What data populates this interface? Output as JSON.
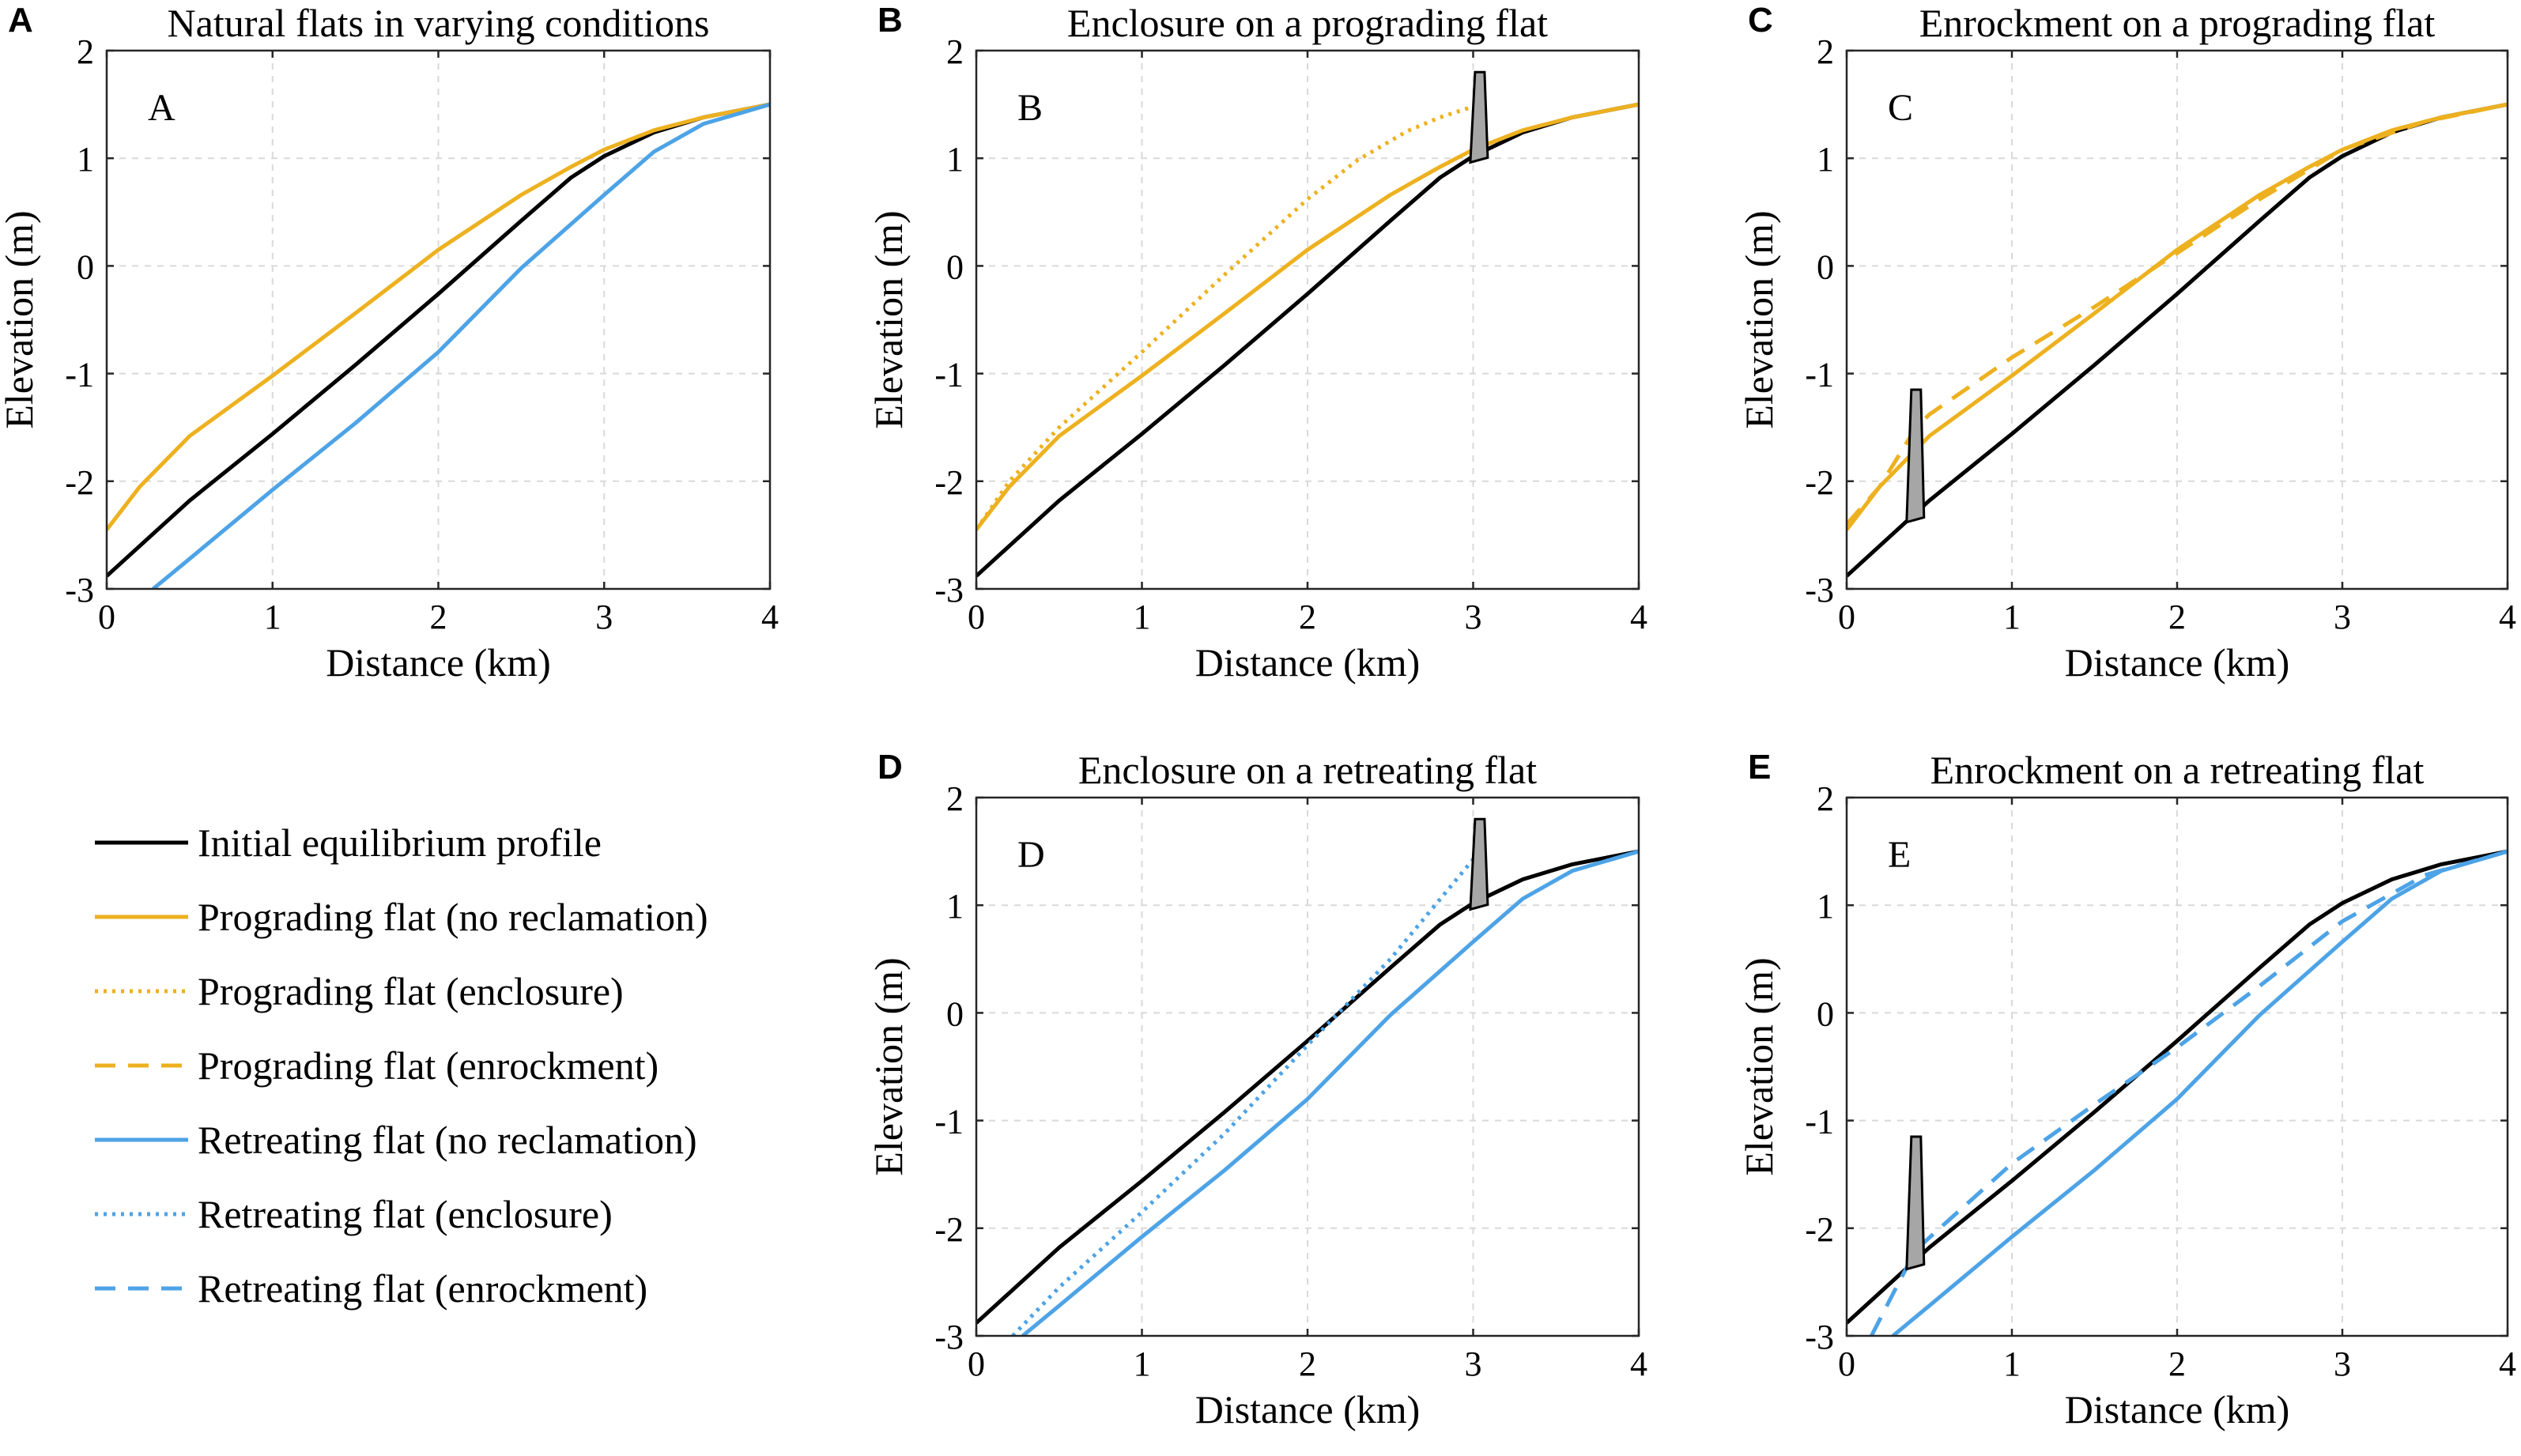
{
  "figure": {
    "colors": {
      "initial": "#000000",
      "prograding": "#EDB120",
      "retreating": "#4DA3E6"
    },
    "legend": {
      "items": [
        {
          "key": "initial",
          "label": "Initial equilibrium profile",
          "color": "#000000",
          "style": "solid"
        },
        {
          "key": "prog",
          "label": "Prograding flat (no reclamation)",
          "color": "#EDB120",
          "style": "solid"
        },
        {
          "key": "prog_encl",
          "label": "Prograding flat (enclosure)",
          "color": "#EDB120",
          "style": "dotted"
        },
        {
          "key": "prog_enr",
          "label": "Prograding flat (enrockment)",
          "color": "#EDB120",
          "style": "dashed"
        },
        {
          "key": "retr",
          "label": "Retreating flat (no reclamation)",
          "color": "#4DA3E6",
          "style": "solid"
        },
        {
          "key": "retr_encl",
          "label": "Retreating flat (enclosure)",
          "color": "#4DA3E6",
          "style": "dotted"
        },
        {
          "key": "retr_enr",
          "label": "Retreating flat (enrockment)",
          "color": "#4DA3E6",
          "style": "dashed"
        }
      ]
    }
  },
  "chart_data": [
    {
      "id": "A",
      "type": "line",
      "panel_letter": "A",
      "inner_label": "A",
      "title": "Natural flats in varying conditions",
      "xlabel": "Distance (km)",
      "ylabel": "Elevation (m)",
      "xlim": [
        0,
        4
      ],
      "ylim": [
        -3,
        2
      ],
      "xticks": [
        "0",
        "1",
        "2",
        "3",
        "4"
      ],
      "yticks": [
        "-3",
        "-2",
        "-1",
        "0",
        "1",
        "2"
      ],
      "structure": null,
      "series": [
        {
          "name": "Initial equilibrium profile",
          "color": "#000000",
          "style": "solid",
          "x": [
            0,
            0.5,
            1,
            1.5,
            2,
            2.5,
            2.8,
            3,
            3.3,
            3.6,
            4
          ],
          "y": [
            -2.88,
            -2.18,
            -1.56,
            -0.92,
            -0.26,
            0.42,
            0.82,
            1.02,
            1.24,
            1.38,
            1.5
          ]
        },
        {
          "name": "Prograding flat (no reclamation)",
          "color": "#EDB120",
          "style": "solid",
          "x": [
            0,
            0.2,
            0.5,
            1,
            1.5,
            2,
            2.5,
            2.8,
            3,
            3.3,
            3.6,
            4
          ],
          "y": [
            -2.45,
            -2.05,
            -1.58,
            -1.02,
            -0.44,
            0.15,
            0.66,
            0.92,
            1.08,
            1.26,
            1.38,
            1.5
          ]
        },
        {
          "name": "Retreating flat (no reclamation)",
          "color": "#4DA3E6",
          "style": "solid",
          "x": [
            0.28,
            0.5,
            1,
            1.5,
            2,
            2.5,
            3,
            3.3,
            3.6,
            4
          ],
          "y": [
            -3.0,
            -2.72,
            -2.08,
            -1.46,
            -0.8,
            -0.02,
            0.66,
            1.06,
            1.32,
            1.5
          ]
        }
      ]
    },
    {
      "id": "B",
      "type": "line",
      "panel_letter": "B",
      "inner_label": "B",
      "title": "Enclosure on a prograding flat",
      "xlabel": "Distance (km)",
      "ylabel": "Elevation (m)",
      "xlim": [
        0,
        4
      ],
      "ylim": [
        -3,
        2
      ],
      "xticks": [
        "0",
        "1",
        "2",
        "3",
        "4"
      ],
      "yticks": [
        "-3",
        "-2",
        "-1",
        "0",
        "1",
        "2"
      ],
      "structure": {
        "x": 3.04,
        "top": 1.8
      },
      "series": [
        {
          "name": "Initial equilibrium profile",
          "color": "#000000",
          "style": "solid",
          "x": [
            0,
            0.5,
            1,
            1.5,
            2,
            2.5,
            2.8,
            3,
            3.3,
            3.6,
            4
          ],
          "y": [
            -2.88,
            -2.18,
            -1.56,
            -0.92,
            -0.26,
            0.42,
            0.82,
            1.02,
            1.24,
            1.38,
            1.5
          ]
        },
        {
          "name": "Prograding flat (no reclamation)",
          "color": "#EDB120",
          "style": "solid",
          "x": [
            0,
            0.2,
            0.5,
            1,
            1.5,
            2,
            2.5,
            2.8,
            3,
            3.3,
            3.6,
            4
          ],
          "y": [
            -2.45,
            -2.05,
            -1.58,
            -1.02,
            -0.44,
            0.15,
            0.66,
            0.92,
            1.08,
            1.26,
            1.38,
            1.5
          ]
        },
        {
          "name": "Prograding flat (enclosure)",
          "color": "#EDB120",
          "style": "dotted",
          "x": [
            0,
            0.2,
            0.5,
            1,
            1.5,
            2,
            2.3,
            2.6,
            2.8,
            3.04
          ],
          "y": [
            -2.45,
            -2.0,
            -1.5,
            -0.8,
            -0.08,
            0.62,
            0.98,
            1.25,
            1.38,
            1.5
          ]
        }
      ]
    },
    {
      "id": "C",
      "type": "line",
      "panel_letter": "C",
      "inner_label": "C",
      "title": "Enrockment on a prograding flat",
      "xlabel": "Distance (km)",
      "ylabel": "Elevation (m)",
      "xlim": [
        0,
        4
      ],
      "ylim": [
        -3,
        2
      ],
      "xticks": [
        "0",
        "1",
        "2",
        "3",
        "4"
      ],
      "yticks": [
        "-3",
        "-2",
        "-1",
        "0",
        "1",
        "2"
      ],
      "structure": {
        "x": 0.42,
        "top": -1.15
      },
      "series": [
        {
          "name": "Initial equilibrium profile",
          "color": "#000000",
          "style": "solid",
          "x": [
            0,
            0.5,
            1,
            1.5,
            2,
            2.5,
            2.8,
            3,
            3.3,
            3.6,
            4
          ],
          "y": [
            -2.88,
            -2.18,
            -1.56,
            -0.92,
            -0.26,
            0.42,
            0.82,
            1.02,
            1.24,
            1.38,
            1.5
          ]
        },
        {
          "name": "Prograding flat (no reclamation)",
          "color": "#EDB120",
          "style": "solid",
          "x": [
            0,
            0.2,
            0.5,
            1,
            1.5,
            2,
            2.5,
            2.8,
            3,
            3.3,
            3.6,
            4
          ],
          "y": [
            -2.45,
            -2.05,
            -1.58,
            -1.02,
            -0.44,
            0.15,
            0.66,
            0.92,
            1.08,
            1.26,
            1.38,
            1.5
          ]
        },
        {
          "name": "Prograding flat (enrockment)",
          "color": "#EDB120",
          "style": "dashed",
          "x": [
            0,
            0.2,
            0.42,
            0.5,
            1,
            1.5,
            2,
            2.5,
            3,
            3.5,
            4
          ],
          "y": [
            -2.4,
            -2.05,
            -1.5,
            -1.38,
            -0.85,
            -0.38,
            0.12,
            0.62,
            1.08,
            1.34,
            1.5
          ]
        }
      ]
    },
    {
      "id": "D",
      "type": "line",
      "panel_letter": "D",
      "inner_label": "D",
      "title": "Enclosure on a retreating flat",
      "xlabel": "Distance (km)",
      "ylabel": "Elevation (m)",
      "xlim": [
        0,
        4
      ],
      "ylim": [
        -3,
        2
      ],
      "xticks": [
        "0",
        "1",
        "2",
        "3",
        "4"
      ],
      "yticks": [
        "-3",
        "-2",
        "-1",
        "0",
        "1",
        "2"
      ],
      "structure": {
        "x": 3.04,
        "top": 1.8
      },
      "series": [
        {
          "name": "Initial equilibrium profile",
          "color": "#000000",
          "style": "solid",
          "x": [
            0,
            0.5,
            1,
            1.5,
            2,
            2.5,
            2.8,
            3,
            3.3,
            3.6,
            4
          ],
          "y": [
            -2.88,
            -2.18,
            -1.56,
            -0.92,
            -0.26,
            0.42,
            0.82,
            1.02,
            1.24,
            1.38,
            1.5
          ]
        },
        {
          "name": "Retreating flat (no reclamation)",
          "color": "#4DA3E6",
          "style": "solid",
          "x": [
            0.28,
            0.5,
            1,
            1.5,
            2,
            2.5,
            3,
            3.3,
            3.6,
            4
          ],
          "y": [
            -3.0,
            -2.72,
            -2.08,
            -1.46,
            -0.8,
            -0.02,
            0.66,
            1.06,
            1.32,
            1.5
          ]
        },
        {
          "name": "Retreating flat (enclosure)",
          "color": "#4DA3E6",
          "style": "dotted",
          "x": [
            0.22,
            0.5,
            1,
            1.5,
            2,
            2.5,
            3.04
          ],
          "y": [
            -3.0,
            -2.55,
            -1.85,
            -1.12,
            -0.3,
            0.5,
            1.5
          ]
        }
      ]
    },
    {
      "id": "E",
      "type": "line",
      "panel_letter": "E",
      "inner_label": "E",
      "title": "Enrockment on a retreating flat",
      "xlabel": "Distance (km)",
      "ylabel": "Elevation (m)",
      "xlim": [
        0,
        4
      ],
      "ylim": [
        -3,
        2
      ],
      "xticks": [
        "0",
        "1",
        "2",
        "3",
        "4"
      ],
      "yticks": [
        "-3",
        "-2",
        "-1",
        "0",
        "1",
        "2"
      ],
      "structure": {
        "x": 0.42,
        "top": -1.15
      },
      "series": [
        {
          "name": "Initial equilibrium profile",
          "color": "#000000",
          "style": "solid",
          "x": [
            0,
            0.5,
            1,
            1.5,
            2,
            2.5,
            2.8,
            3,
            3.3,
            3.6,
            4
          ],
          "y": [
            -2.88,
            -2.18,
            -1.56,
            -0.92,
            -0.26,
            0.42,
            0.82,
            1.02,
            1.24,
            1.38,
            1.5
          ]
        },
        {
          "name": "Retreating flat (no reclamation)",
          "color": "#4DA3E6",
          "style": "solid",
          "x": [
            0.28,
            0.5,
            1,
            1.5,
            2,
            2.5,
            3,
            3.3,
            3.6,
            4
          ],
          "y": [
            -3.0,
            -2.72,
            -2.08,
            -1.46,
            -0.8,
            -0.02,
            0.66,
            1.06,
            1.32,
            1.5
          ]
        },
        {
          "name": "Retreating flat (enrockment)",
          "color": "#4DA3E6",
          "style": "dashed",
          "x": [
            0.15,
            0.3,
            0.42,
            0.6,
            1,
            1.5,
            2,
            2.5,
            3,
            3.5,
            4
          ],
          "y": [
            -3.0,
            -2.55,
            -2.2,
            -1.95,
            -1.4,
            -0.85,
            -0.32,
            0.25,
            0.85,
            1.28,
            1.5
          ]
        }
      ]
    }
  ]
}
